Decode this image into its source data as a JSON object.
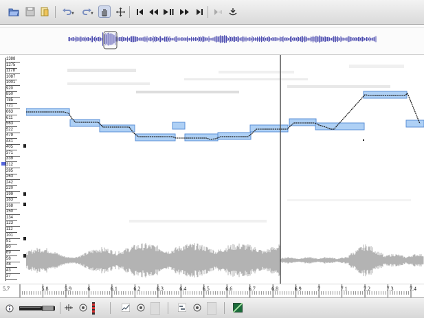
{
  "toolbar": {
    "buttons": [
      {
        "name": "open-file-button",
        "icon": "open-folder-icon"
      },
      {
        "name": "save-file-button",
        "icon": "disk-icon"
      },
      {
        "name": "export-button",
        "icon": "document-icon"
      },
      {
        "name": "undo-button",
        "icon": "undo-arrow-icon"
      },
      {
        "name": "redo-button",
        "icon": "redo-arrow-icon"
      },
      {
        "name": "hand-tool-button",
        "icon": "hand-icon"
      },
      {
        "name": "move-tool-button",
        "icon": "crosshair-icon"
      },
      {
        "name": "rewind-to-start-button",
        "icon": "skip-back-icon"
      },
      {
        "name": "rewind-button",
        "icon": "rewind-icon"
      },
      {
        "name": "play-pause-button",
        "icon": "play-pause-icon"
      },
      {
        "name": "fast-forward-button",
        "icon": "fast-forward-icon"
      },
      {
        "name": "forward-to-end-button",
        "icon": "skip-forward-icon"
      },
      {
        "name": "play-selection-button",
        "icon": "play-selection-icon"
      },
      {
        "name": "record-button",
        "icon": "record-icon"
      }
    ]
  },
  "pitch_scale": {
    "labels": [
      "1388",
      "1275",
      "1178",
      "1087",
      "1001",
      "920",
      "850",
      "785",
      "721",
      "663",
      "611",
      "563",
      "522",
      "479",
      "441",
      "405",
      "371",
      "339",
      "312",
      "285",
      "263",
      "242",
      "220",
      "199",
      "183",
      "168",
      "150",
      "134",
      "123",
      "112",
      "101",
      "91",
      "80",
      "69",
      "58",
      "48",
      "43",
      "37"
    ]
  },
  "time_ruler": {
    "labels": [
      "5.7",
      "5.8",
      "5.9",
      "6",
      "6.1",
      "6.2",
      "6.3",
      "6.4",
      "6.5",
      "6.6",
      "6.7",
      "6.8",
      "6.9",
      "7",
      "7.1",
      "7.2",
      "7.3",
      "7.4"
    ]
  },
  "colors": {
    "note_fill": "#aed0f5",
    "note_border": "#5b8fd6",
    "pitch_track": "#222222",
    "waveform": "#b3b3b3",
    "overview_wave": "#4d4db0",
    "playhead": "#555555"
  },
  "bottom_bar": {
    "items": [
      {
        "name": "info-button",
        "icon": "info-icon"
      },
      {
        "name": "volume-slider",
        "icon": "slider-icon"
      },
      {
        "name": "layer-audio-button",
        "icon": "waveform-small-icon"
      },
      {
        "name": "layer-audio-play-button",
        "icon": "speaker-icon"
      },
      {
        "name": "layer-audio-meter",
        "icon": "level-meter-icon"
      },
      {
        "name": "layer-pitch-button",
        "icon": "pitch-curve-icon"
      },
      {
        "name": "layer-pitch-play-button",
        "icon": "speaker-icon"
      },
      {
        "name": "layer-pitch-meter",
        "icon": "level-meter-icon"
      },
      {
        "name": "layer-notes-button",
        "icon": "notes-icon"
      },
      {
        "name": "layer-notes-play-button",
        "icon": "speaker-icon"
      },
      {
        "name": "layer-notes-meter",
        "icon": "level-meter-icon"
      },
      {
        "name": "layer-spectrogram-button",
        "icon": "spectrogram-icon"
      }
    ]
  }
}
